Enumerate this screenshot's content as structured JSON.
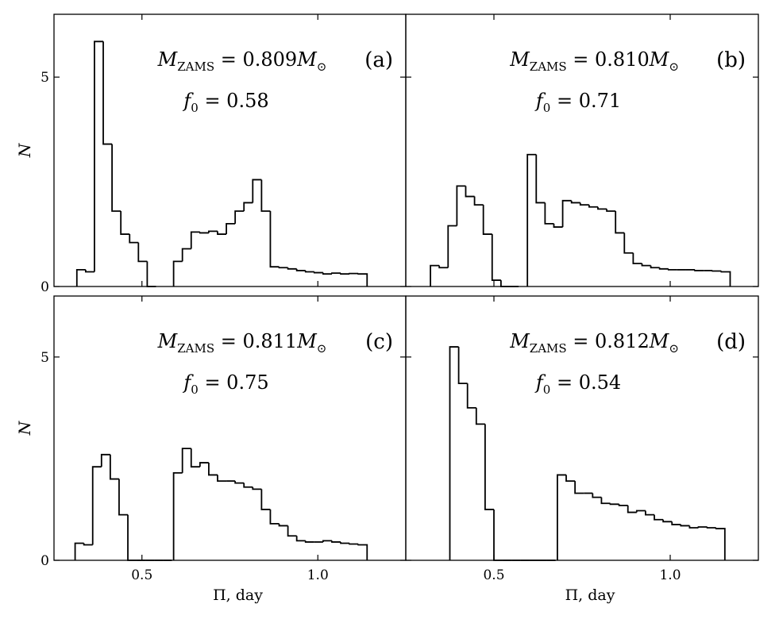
{
  "chart_data": [
    {
      "type": "bar",
      "panel_label": "(a)",
      "annotation": {
        "mass_symbol": "M",
        "mass_subscript": "ZAMS",
        "mass_value": "= 0.809",
        "sun_symbol": "M",
        "sun_subscript": "⊙",
        "f0_symbol": "f",
        "f0_subscript": "0",
        "f0_value": "= 0.58"
      },
      "xlim": [
        0.25,
        1.25
      ],
      "ylim": [
        0,
        6.5
      ],
      "xlabel": "",
      "ylabel": "N",
      "xticks": [
        "0.5",
        "1.0"
      ],
      "yticks": [
        "0",
        "5"
      ],
      "bin_width": 0.025,
      "bins": [
        {
          "x": 0.315,
          "y": 0.4
        },
        {
          "x": 0.34,
          "y": 0.35
        },
        {
          "x": 0.365,
          "y": 5.85
        },
        {
          "x": 0.39,
          "y": 3.4
        },
        {
          "x": 0.415,
          "y": 1.8
        },
        {
          "x": 0.44,
          "y": 1.25
        },
        {
          "x": 0.465,
          "y": 1.05
        },
        {
          "x": 0.49,
          "y": 0.6
        },
        {
          "x": 0.515,
          "y": 0.0
        },
        {
          "x": 0.59,
          "y": 0.6
        },
        {
          "x": 0.615,
          "y": 0.9
        },
        {
          "x": 0.64,
          "y": 1.3
        },
        {
          "x": 0.665,
          "y": 1.28
        },
        {
          "x": 0.69,
          "y": 1.32
        },
        {
          "x": 0.715,
          "y": 1.25
        },
        {
          "x": 0.74,
          "y": 1.5
        },
        {
          "x": 0.765,
          "y": 1.8
        },
        {
          "x": 0.79,
          "y": 2.0
        },
        {
          "x": 0.815,
          "y": 2.55
        },
        {
          "x": 0.84,
          "y": 1.8
        },
        {
          "x": 0.865,
          "y": 0.47
        },
        {
          "x": 0.89,
          "y": 0.45
        },
        {
          "x": 0.915,
          "y": 0.42
        },
        {
          "x": 0.94,
          "y": 0.38
        },
        {
          "x": 0.965,
          "y": 0.35
        },
        {
          "x": 0.99,
          "y": 0.33
        },
        {
          "x": 1.015,
          "y": 0.3
        },
        {
          "x": 1.04,
          "y": 0.32
        },
        {
          "x": 1.065,
          "y": 0.3
        },
        {
          "x": 1.09,
          "y": 0.31
        },
        {
          "x": 1.115,
          "y": 0.3
        }
      ]
    },
    {
      "type": "bar",
      "panel_label": "(b)",
      "annotation": {
        "mass_symbol": "M",
        "mass_subscript": "ZAMS",
        "mass_value": "= 0.810",
        "sun_symbol": "M",
        "sun_subscript": "⊙",
        "f0_symbol": "f",
        "f0_subscript": "0",
        "f0_value": "= 0.71"
      },
      "xlim": [
        0.25,
        1.25
      ],
      "ylim": [
        0,
        6.5
      ],
      "xlabel": "",
      "ylabel": "",
      "xticks": [
        "0.5",
        "1.0"
      ],
      "yticks": [
        "0",
        "5"
      ],
      "bin_width": 0.025,
      "bins": [
        {
          "x": 0.32,
          "y": 0.5
        },
        {
          "x": 0.345,
          "y": 0.45
        },
        {
          "x": 0.37,
          "y": 1.45
        },
        {
          "x": 0.395,
          "y": 2.4
        },
        {
          "x": 0.42,
          "y": 2.15
        },
        {
          "x": 0.445,
          "y": 1.95
        },
        {
          "x": 0.47,
          "y": 1.25
        },
        {
          "x": 0.495,
          "y": 0.15
        },
        {
          "x": 0.52,
          "y": 0.0
        },
        {
          "x": 0.545,
          "y": 0.0
        },
        {
          "x": 0.595,
          "y": 3.15
        },
        {
          "x": 0.62,
          "y": 2.0
        },
        {
          "x": 0.645,
          "y": 1.5
        },
        {
          "x": 0.67,
          "y": 1.42
        },
        {
          "x": 0.695,
          "y": 2.05
        },
        {
          "x": 0.72,
          "y": 2.0
        },
        {
          "x": 0.745,
          "y": 1.95
        },
        {
          "x": 0.77,
          "y": 1.9
        },
        {
          "x": 0.795,
          "y": 1.85
        },
        {
          "x": 0.82,
          "y": 1.8
        },
        {
          "x": 0.845,
          "y": 1.28
        },
        {
          "x": 0.87,
          "y": 0.8
        },
        {
          "x": 0.895,
          "y": 0.55
        },
        {
          "x": 0.92,
          "y": 0.5
        },
        {
          "x": 0.945,
          "y": 0.45
        },
        {
          "x": 0.97,
          "y": 0.42
        },
        {
          "x": 0.995,
          "y": 0.4
        },
        {
          "x": 1.02,
          "y": 0.4
        },
        {
          "x": 1.045,
          "y": 0.4
        },
        {
          "x": 1.07,
          "y": 0.38
        },
        {
          "x": 1.095,
          "y": 0.38
        },
        {
          "x": 1.12,
          "y": 0.37
        },
        {
          "x": 1.145,
          "y": 0.35
        }
      ]
    },
    {
      "type": "bar",
      "panel_label": "(c)",
      "annotation": {
        "mass_symbol": "M",
        "mass_subscript": "ZAMS",
        "mass_value": "= 0.811",
        "sun_symbol": "M",
        "sun_subscript": "⊙",
        "f0_symbol": "f",
        "f0_subscript": "0",
        "f0_value": "= 0.75"
      },
      "xlim": [
        0.25,
        1.25
      ],
      "ylim": [
        0,
        6.5
      ],
      "xlabel": "Π, day",
      "ylabel": "N",
      "xticks": [
        "0.5",
        "1.0"
      ],
      "yticks": [
        "0",
        "5"
      ],
      "bin_width": 0.025,
      "bins": [
        {
          "x": 0.31,
          "y": 0.42
        },
        {
          "x": 0.335,
          "y": 0.38
        },
        {
          "x": 0.36,
          "y": 2.3
        },
        {
          "x": 0.385,
          "y": 2.6
        },
        {
          "x": 0.41,
          "y": 2.0
        },
        {
          "x": 0.435,
          "y": 1.12
        },
        {
          "x": 0.46,
          "y": 0.0
        },
        {
          "x": 0.485,
          "y": 0.0
        },
        {
          "x": 0.51,
          "y": 0.0
        },
        {
          "x": 0.535,
          "y": 0.0
        },
        {
          "x": 0.56,
          "y": 0.0
        },
        {
          "x": 0.59,
          "y": 2.15
        },
        {
          "x": 0.615,
          "y": 2.75
        },
        {
          "x": 0.64,
          "y": 2.3
        },
        {
          "x": 0.665,
          "y": 2.4
        },
        {
          "x": 0.69,
          "y": 2.1
        },
        {
          "x": 0.715,
          "y": 1.95
        },
        {
          "x": 0.74,
          "y": 1.95
        },
        {
          "x": 0.765,
          "y": 1.9
        },
        {
          "x": 0.79,
          "y": 1.8
        },
        {
          "x": 0.815,
          "y": 1.75
        },
        {
          "x": 0.84,
          "y": 1.25
        },
        {
          "x": 0.865,
          "y": 0.9
        },
        {
          "x": 0.89,
          "y": 0.85
        },
        {
          "x": 0.915,
          "y": 0.6
        },
        {
          "x": 0.94,
          "y": 0.48
        },
        {
          "x": 0.965,
          "y": 0.45
        },
        {
          "x": 0.99,
          "y": 0.45
        },
        {
          "x": 1.015,
          "y": 0.48
        },
        {
          "x": 1.04,
          "y": 0.45
        },
        {
          "x": 1.065,
          "y": 0.42
        },
        {
          "x": 1.09,
          "y": 0.4
        },
        {
          "x": 1.115,
          "y": 0.38
        }
      ]
    },
    {
      "type": "bar",
      "panel_label": "(d)",
      "annotation": {
        "mass_symbol": "M",
        "mass_subscript": "ZAMS",
        "mass_value": "= 0.812",
        "sun_symbol": "M",
        "sun_subscript": "⊙",
        "f0_symbol": "f",
        "f0_subscript": "0",
        "f0_value": "= 0.54"
      },
      "xlim": [
        0.25,
        1.25
      ],
      "ylim": [
        0,
        6.5
      ],
      "xlabel": "Π, day",
      "ylabel": "",
      "xticks": [
        "0.5",
        "1.0"
      ],
      "yticks": [
        "0",
        "5"
      ],
      "bin_width": 0.025,
      "bins": [
        {
          "x": 0.375,
          "y": 5.25
        },
        {
          "x": 0.4,
          "y": 4.35
        },
        {
          "x": 0.425,
          "y": 3.75
        },
        {
          "x": 0.45,
          "y": 3.35
        },
        {
          "x": 0.475,
          "y": 1.25
        },
        {
          "x": 0.5,
          "y": 0.0
        },
        {
          "x": 0.525,
          "y": 0.0
        },
        {
          "x": 0.55,
          "y": 0.0
        },
        {
          "x": 0.575,
          "y": 0.0
        },
        {
          "x": 0.6,
          "y": 0.0
        },
        {
          "x": 0.625,
          "y": 0.0
        },
        {
          "x": 0.65,
          "y": 0.0
        },
        {
          "x": 0.68,
          "y": 2.1
        },
        {
          "x": 0.705,
          "y": 1.95
        },
        {
          "x": 0.73,
          "y": 1.65
        },
        {
          "x": 0.755,
          "y": 1.65
        },
        {
          "x": 0.78,
          "y": 1.55
        },
        {
          "x": 0.805,
          "y": 1.4
        },
        {
          "x": 0.83,
          "y": 1.38
        },
        {
          "x": 0.855,
          "y": 1.35
        },
        {
          "x": 0.88,
          "y": 1.18
        },
        {
          "x": 0.905,
          "y": 1.22
        },
        {
          "x": 0.93,
          "y": 1.12
        },
        {
          "x": 0.955,
          "y": 1.0
        },
        {
          "x": 0.98,
          "y": 0.95
        },
        {
          "x": 1.005,
          "y": 0.88
        },
        {
          "x": 1.03,
          "y": 0.85
        },
        {
          "x": 1.055,
          "y": 0.8
        },
        {
          "x": 1.08,
          "y": 0.82
        },
        {
          "x": 1.105,
          "y": 0.8
        },
        {
          "x": 1.13,
          "y": 0.78
        }
      ]
    }
  ]
}
